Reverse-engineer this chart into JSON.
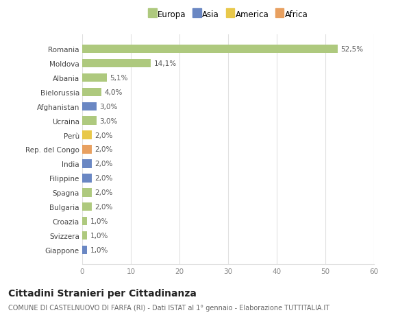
{
  "countries": [
    "Romania",
    "Moldova",
    "Albania",
    "Bielorussia",
    "Afghanistan",
    "Ucraina",
    "Perù",
    "Rep. del Congo",
    "India",
    "Filippine",
    "Spagna",
    "Bulgaria",
    "Croazia",
    "Svizzera",
    "Giappone"
  ],
  "values": [
    52.5,
    14.1,
    5.1,
    4.0,
    3.0,
    3.0,
    2.0,
    2.0,
    2.0,
    2.0,
    2.0,
    2.0,
    1.0,
    1.0,
    1.0
  ],
  "labels": [
    "52,5%",
    "14,1%",
    "5,1%",
    "4,0%",
    "3,0%",
    "3,0%",
    "2,0%",
    "2,0%",
    "2,0%",
    "2,0%",
    "2,0%",
    "2,0%",
    "1,0%",
    "1,0%",
    "1,0%"
  ],
  "colors": [
    "#aec97e",
    "#aec97e",
    "#aec97e",
    "#aec97e",
    "#6a87c3",
    "#aec97e",
    "#e8c84a",
    "#e8a060",
    "#6a87c3",
    "#6a87c3",
    "#aec97e",
    "#aec97e",
    "#aec97e",
    "#aec97e",
    "#6a87c3"
  ],
  "legend_labels": [
    "Europa",
    "Asia",
    "America",
    "Africa"
  ],
  "legend_colors": [
    "#aec97e",
    "#6a87c3",
    "#e8c84a",
    "#e8a060"
  ],
  "xlim": [
    0,
    60
  ],
  "xticks": [
    0,
    10,
    20,
    30,
    40,
    50,
    60
  ],
  "title": "Cittadini Stranieri per Cittadinanza",
  "subtitle": "COMUNE DI CASTELNUOVO DI FARFA (RI) - Dati ISTAT al 1° gennaio - Elaborazione TUTTITALIA.IT",
  "bg_color": "#ffffff",
  "plot_bg_color": "#ffffff",
  "grid_color": "#e0e0e0",
  "label_fontsize": 7.5,
  "tick_fontsize": 7.5,
  "title_fontsize": 10,
  "subtitle_fontsize": 7,
  "legend_fontsize": 8.5
}
